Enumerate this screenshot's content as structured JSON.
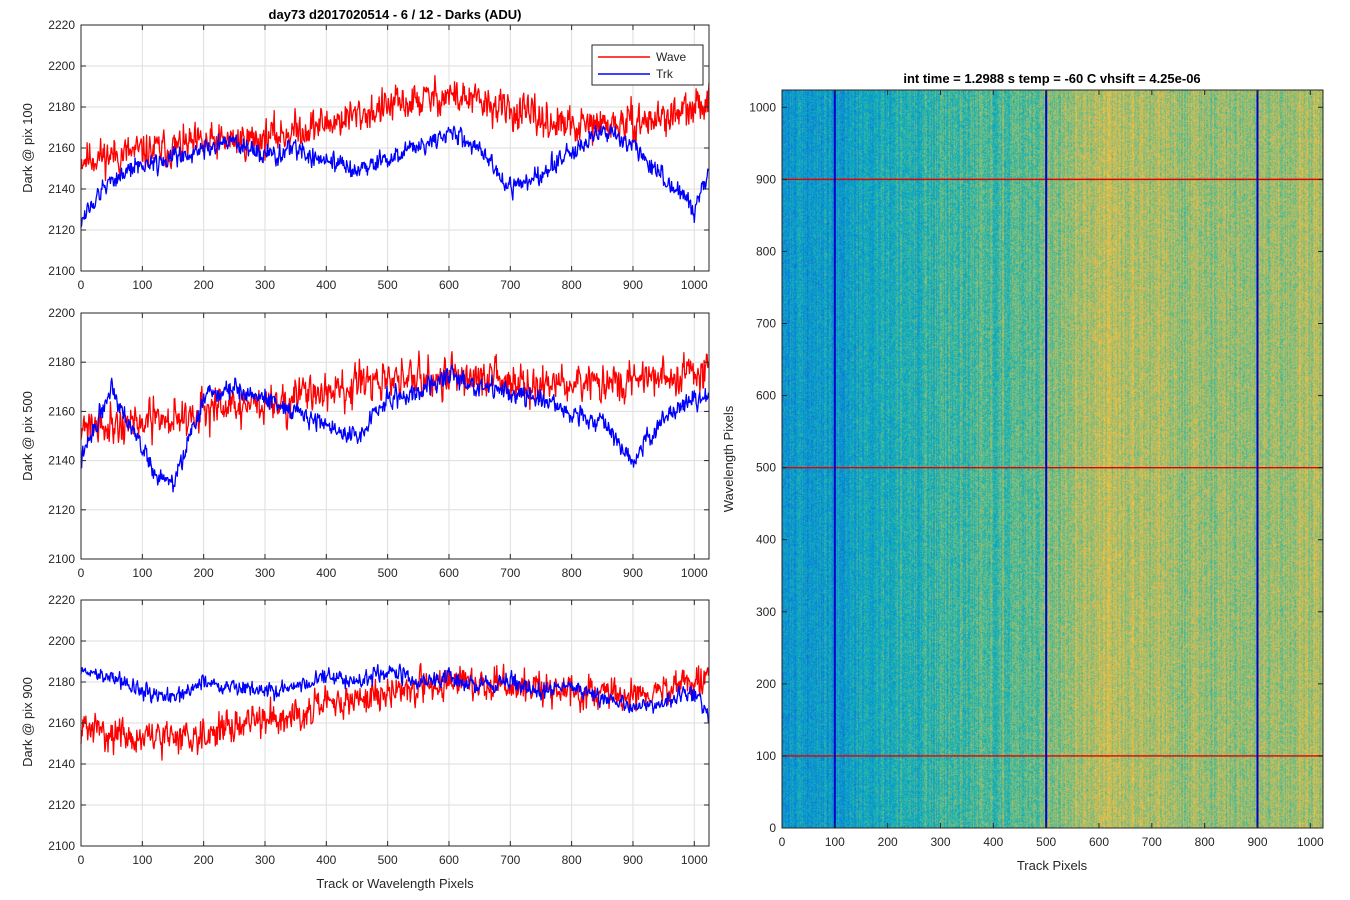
{
  "chart_data": [
    {
      "type": "line",
      "title": "day73 d2017020514 - 6 / 12 - Darks (ADU)",
      "xlabel": "",
      "ylabel": "Dark @ pix 100",
      "xlim": [
        0,
        1024
      ],
      "ylim": [
        2100,
        2220
      ],
      "xticks": [
        0,
        100,
        200,
        300,
        400,
        500,
        600,
        700,
        800,
        900,
        1000
      ],
      "yticks": [
        2100,
        2120,
        2140,
        2160,
        2180,
        2200,
        2220
      ],
      "grid": true,
      "legend": {
        "position": "top-right",
        "entries": [
          "Wave",
          "Trk"
        ]
      },
      "series": [
        {
          "name": "Wave",
          "color": "#ff0000",
          "noise": 11,
          "seed": 11,
          "x": [
            0,
            100,
            200,
            300,
            400,
            500,
            550,
            600,
            700,
            800,
            900,
            1000,
            1024
          ],
          "y": [
            2155,
            2158,
            2162,
            2165,
            2172,
            2180,
            2183,
            2186,
            2178,
            2170,
            2172,
            2178,
            2185
          ]
        },
        {
          "name": "Trk",
          "color": "#0000ff",
          "noise": 6,
          "seed": 12,
          "x": [
            0,
            50,
            100,
            150,
            200,
            250,
            300,
            350,
            400,
            450,
            500,
            550,
            600,
            650,
            700,
            750,
            800,
            850,
            900,
            950,
            1000,
            1024
          ],
          "y": [
            2125,
            2145,
            2152,
            2155,
            2160,
            2163,
            2155,
            2160,
            2153,
            2150,
            2155,
            2160,
            2168,
            2160,
            2140,
            2148,
            2158,
            2168,
            2162,
            2145,
            2130,
            2150
          ]
        }
      ]
    },
    {
      "type": "line",
      "title": "",
      "xlabel": "",
      "ylabel": "Dark @ pix 500",
      "xlim": [
        0,
        1024
      ],
      "ylim": [
        2100,
        2200
      ],
      "xticks": [
        0,
        100,
        200,
        300,
        400,
        500,
        600,
        700,
        800,
        900,
        1000
      ],
      "yticks": [
        2100,
        2120,
        2140,
        2160,
        2180,
        2200
      ],
      "grid": true,
      "series": [
        {
          "name": "",
          "color": "#ff0000",
          "noise": 10,
          "seed": 21,
          "x": [
            0,
            100,
            200,
            300,
            400,
            500,
            600,
            700,
            800,
            900,
            1000,
            1024
          ],
          "y": [
            2155,
            2155,
            2160,
            2163,
            2168,
            2172,
            2175,
            2172,
            2170,
            2172,
            2175,
            2178
          ]
        },
        {
          "name": "",
          "color": "#0000ff",
          "noise": 5,
          "seed": 22,
          "x": [
            0,
            50,
            80,
            100,
            120,
            150,
            200,
            250,
            300,
            350,
            400,
            450,
            480,
            500,
            550,
            600,
            650,
            700,
            750,
            800,
            850,
            900,
            950,
            1000,
            1024
          ],
          "y": [
            2140,
            2170,
            2155,
            2145,
            2135,
            2130,
            2165,
            2170,
            2165,
            2160,
            2155,
            2148,
            2160,
            2165,
            2168,
            2175,
            2170,
            2168,
            2165,
            2160,
            2155,
            2140,
            2158,
            2165,
            2165
          ]
        }
      ]
    },
    {
      "type": "line",
      "title": "",
      "xlabel": "Track or Wavelength Pixels",
      "ylabel": "Dark @ pix 900",
      "xlim": [
        0,
        1024
      ],
      "ylim": [
        2100,
        2220
      ],
      "xticks": [
        0,
        100,
        200,
        300,
        400,
        500,
        600,
        700,
        800,
        900,
        1000
      ],
      "yticks": [
        2100,
        2120,
        2140,
        2160,
        2180,
        2200,
        2220
      ],
      "grid": true,
      "series": [
        {
          "name": "",
          "color": "#ff0000",
          "noise": 10,
          "seed": 31,
          "x": [
            0,
            100,
            200,
            300,
            400,
            500,
            600,
            700,
            800,
            900,
            1000,
            1024
          ],
          "y": [
            2158,
            2152,
            2155,
            2162,
            2168,
            2175,
            2180,
            2178,
            2175,
            2173,
            2180,
            2182
          ]
        },
        {
          "name": "",
          "color": "#0000ff",
          "noise": 5,
          "seed": 32,
          "x": [
            0,
            50,
            100,
            150,
            200,
            250,
            300,
            350,
            400,
            450,
            500,
            550,
            600,
            650,
            700,
            750,
            800,
            850,
            900,
            950,
            1000,
            1024
          ],
          "y": [
            2185,
            2183,
            2175,
            2172,
            2180,
            2178,
            2175,
            2178,
            2182,
            2180,
            2185,
            2180,
            2182,
            2178,
            2180,
            2175,
            2178,
            2172,
            2168,
            2170,
            2175,
            2162
          ]
        }
      ]
    },
    {
      "type": "heatmap",
      "title": "int time = 1.2988 s    temp = -60 C    vhsift = 4.25e-06",
      "xlabel": "Track Pixels",
      "ylabel": "Wavelength Pixels",
      "xlim": [
        0,
        1024
      ],
      "ylim": [
        0,
        1024
      ],
      "xticks": [
        0,
        100,
        200,
        300,
        400,
        500,
        600,
        700,
        800,
        900,
        1000
      ],
      "yticks": [
        0,
        100,
        200,
        300,
        400,
        500,
        600,
        700,
        800,
        900,
        1000
      ],
      "colormap": "parula",
      "column_level": {
        "x": [
          0,
          100,
          200,
          300,
          400,
          500,
          550,
          600,
          700,
          800,
          900,
          1000,
          1024
        ],
        "v": [
          0.3,
          0.3,
          0.38,
          0.44,
          0.48,
          0.52,
          0.62,
          0.64,
          0.62,
          0.58,
          0.58,
          0.62,
          0.62
        ]
      },
      "marker_lines": {
        "vertical": {
          "x": [
            100,
            500,
            900
          ],
          "color": "#0000cc"
        },
        "horizontal": {
          "y": [
            100,
            500,
            900
          ],
          "color": "#e60000"
        }
      }
    }
  ]
}
